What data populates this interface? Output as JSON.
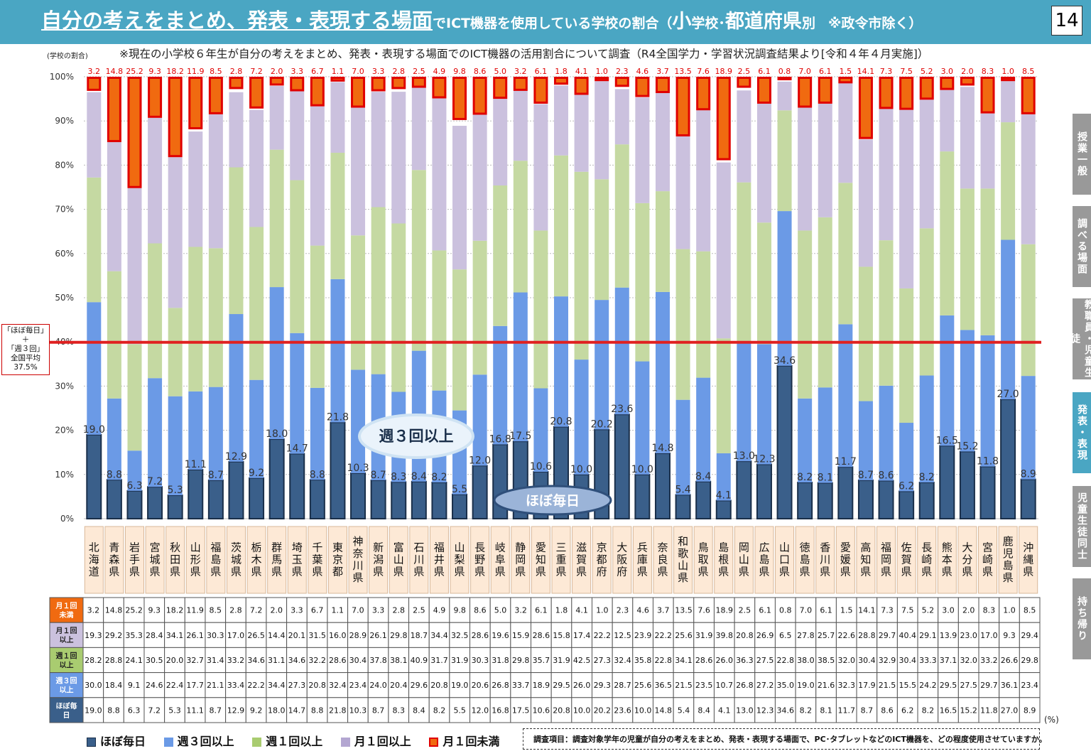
{
  "header": {
    "title_main": "自分の考えをまとめ、発表・表現する場面",
    "title_mid": "でICT機器を使用している学校の割合（",
    "title_school": "小",
    "title_mid2": "学校･",
    "title_pref": "都道府県",
    "title_end": "別",
    "title_note": "※政令市除く）",
    "page_number": "14"
  },
  "subtitle": "※現在の小学校６年生が自分の考えをまとめ、発表・表現する場面でのICT機器の活用割合について調査（R4全国学力・学習状況調査結果より[令和４年４月実施]）",
  "y_axis_label": "(学校の割合)",
  "average_box": {
    "line1": "「ほぼ毎日」",
    "line2": "＋",
    "line3": "「週３回」",
    "line4": "全国平均",
    "line5": "37.5%"
  },
  "side_tabs": [
    {
      "label": "授業一般",
      "active": false
    },
    {
      "label": "調べる場面",
      "active": false
    },
    {
      "label": "教職員・児童生徒",
      "active": false
    },
    {
      "label": "発表・表現",
      "active": true
    },
    {
      "label": "児童生徒同士",
      "active": false
    },
    {
      "label": "持ち帰り",
      "active": false
    }
  ],
  "legend": {
    "daily": "ほぼ毎日",
    "weekly3": "週３回以上",
    "weekly1": "週１回以上",
    "monthly1": "月１回以上",
    "less": "月１回未満"
  },
  "table_row_labels": {
    "less": "月１回未満",
    "monthly1": "月１回以上",
    "weekly1": "週１回以上",
    "weekly3": "週３回以上",
    "daily": "ほぼ毎日"
  },
  "callouts": {
    "weekly3": "週３回以上",
    "daily": "ほぼ毎日"
  },
  "survey_note": "調査項目：調査対象学年の児童が自分の考えをまとめ、発表・表現する場面で、PC･タブレットなどのICT機器を、どの程度使用させていますか。",
  "unit_note": "(%)",
  "colors": {
    "daily": "#3a5f8a",
    "weekly3": "#6b9ae6",
    "weekly1": "#c5d9a2",
    "monthly1": "#cbc1de",
    "less": "#f06a10",
    "less_border": "#e00000",
    "average_line": "#e02020",
    "header": "#4aa6c3"
  },
  "chart_data": {
    "type": "bar",
    "stacked": true,
    "ylim": [
      0,
      100
    ],
    "yticks": [
      "0%",
      "10%",
      "20%",
      "30%",
      "40%",
      "50%",
      "60%",
      "70%",
      "80%",
      "90%",
      "100%"
    ],
    "grid": true,
    "average_line_value": 37.5,
    "categories": [
      "北海道",
      "青森県",
      "岩手県",
      "宮城県",
      "秋田県",
      "山形県",
      "福島県",
      "茨城県",
      "栃木県",
      "群馬県",
      "埼玉県",
      "千葉県",
      "東京都",
      "神奈川県",
      "新潟県",
      "富山県",
      "石川県",
      "福井県",
      "山梨県",
      "長野県",
      "岐阜県",
      "静岡県",
      "愛知県",
      "三重県",
      "滋賀県",
      "京都府",
      "大阪府",
      "兵庫県",
      "奈良県",
      "和歌山県",
      "鳥取県",
      "島根県",
      "岡山県",
      "広島県",
      "山口県",
      "徳島県",
      "香川県",
      "愛媛県",
      "高知県",
      "福岡県",
      "佐賀県",
      "長崎県",
      "熊本県",
      "大分県",
      "宮崎県",
      "鹿児島県",
      "沖縄県"
    ],
    "series": [
      {
        "name": "ほぼ毎日",
        "key": "daily",
        "values": [
          19.0,
          8.8,
          6.3,
          7.2,
          5.3,
          11.1,
          8.7,
          12.9,
          9.2,
          18.0,
          14.7,
          8.8,
          21.8,
          10.3,
          8.7,
          8.3,
          8.4,
          8.2,
          5.5,
          12.0,
          16.8,
          17.5,
          10.6,
          20.8,
          10.0,
          20.2,
          23.6,
          10.0,
          14.8,
          5.4,
          8.4,
          4.1,
          13.0,
          12.3,
          34.6,
          8.2,
          8.1,
          11.7,
          8.7,
          8.6,
          6.2,
          8.2,
          16.5,
          15.2,
          11.8,
          27.0,
          8.9
        ]
      },
      {
        "name": "週３回以上",
        "key": "weekly3",
        "values": [
          30.0,
          18.4,
          9.1,
          24.6,
          22.4,
          17.7,
          21.1,
          33.4,
          22.2,
          34.4,
          27.3,
          20.8,
          32.4,
          23.4,
          24.0,
          20.4,
          29.6,
          20.8,
          19.0,
          20.6,
          26.8,
          33.7,
          18.9,
          29.5,
          26.0,
          29.3,
          28.7,
          25.6,
          36.5,
          21.5,
          23.5,
          10.7,
          26.8,
          27.2,
          35.0,
          19.0,
          21.6,
          32.3,
          17.9,
          21.5,
          15.5,
          24.2,
          29.5,
          27.5,
          29.7,
          36.1,
          23.4
        ]
      },
      {
        "name": "週１回以上",
        "key": "weekly1",
        "values": [
          28.2,
          28.8,
          24.1,
          30.5,
          20.0,
          32.7,
          31.4,
          33.2,
          34.6,
          31.1,
          34.6,
          32.2,
          28.6,
          30.4,
          37.8,
          38.1,
          40.9,
          31.7,
          31.9,
          30.3,
          31.8,
          29.8,
          35.7,
          31.9,
          42.5,
          27.3,
          32.4,
          35.8,
          22.8,
          34.1,
          28.6,
          26.0,
          36.3,
          27.5,
          22.8,
          38.0,
          38.5,
          32.0,
          30.4,
          32.9,
          30.4,
          33.3,
          37.1,
          32.0,
          33.2,
          26.6,
          29.8
        ]
      },
      {
        "name": "月１回以上",
        "key": "monthly1",
        "values": [
          19.3,
          29.2,
          35.3,
          28.4,
          34.1,
          26.1,
          30.3,
          17.0,
          26.5,
          14.4,
          20.1,
          31.5,
          16.0,
          28.9,
          26.1,
          29.8,
          18.7,
          34.4,
          32.5,
          28.6,
          19.6,
          15.9,
          28.6,
          15.8,
          17.4,
          22.2,
          12.5,
          23.9,
          22.2,
          25.6,
          31.9,
          39.8,
          20.8,
          26.9,
          6.5,
          27.8,
          25.7,
          22.6,
          28.8,
          29.7,
          40.4,
          29.1,
          13.9,
          23.0,
          17.0,
          9.3,
          29.4
        ]
      },
      {
        "name": "月１回未満",
        "key": "less",
        "values": [
          3.2,
          14.8,
          25.2,
          9.3,
          18.2,
          11.9,
          8.5,
          2.8,
          7.2,
          2.0,
          3.3,
          6.7,
          1.1,
          7.0,
          3.3,
          2.8,
          2.5,
          4.9,
          9.8,
          8.6,
          5.0,
          3.2,
          6.1,
          1.8,
          4.1,
          1.0,
          2.3,
          4.6,
          3.7,
          13.5,
          7.6,
          18.9,
          2.5,
          6.1,
          0.8,
          7.0,
          6.1,
          1.5,
          14.1,
          7.3,
          7.5,
          5.2,
          3.0,
          2.0,
          8.3,
          1.0,
          8.5
        ]
      }
    ]
  }
}
